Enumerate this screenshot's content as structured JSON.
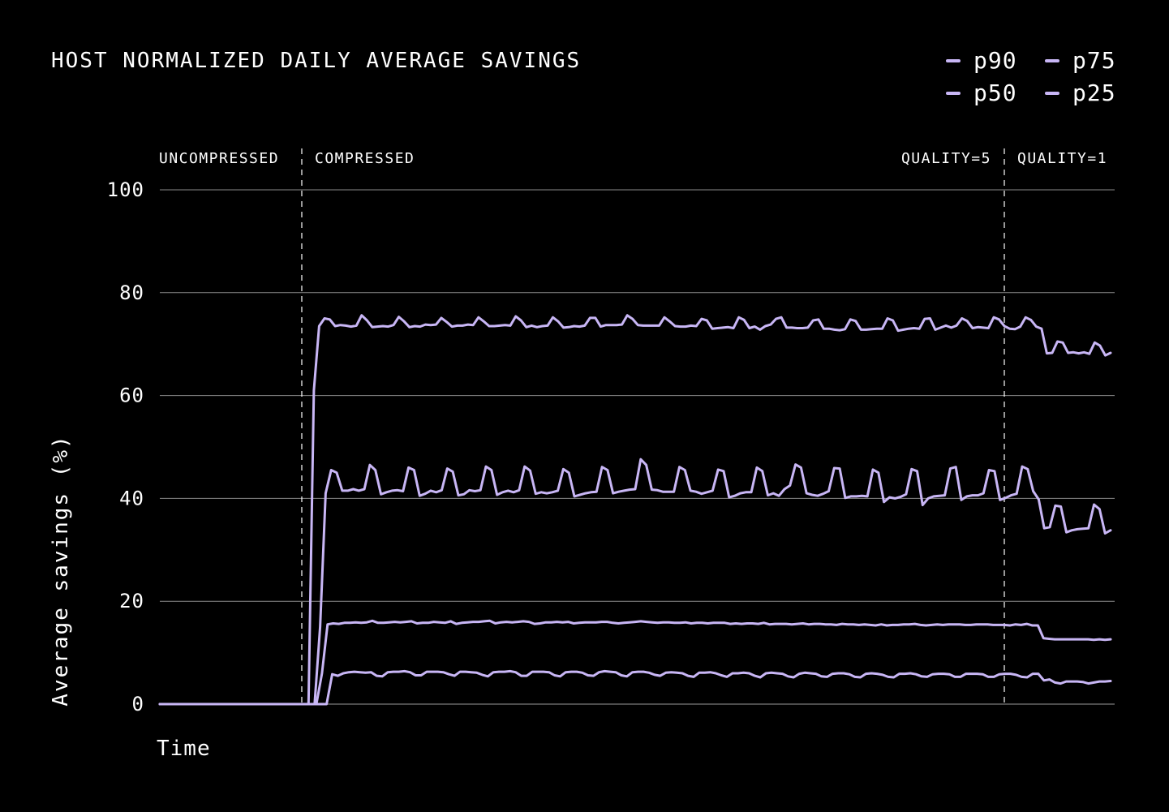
{
  "chart_data": {
    "type": "line",
    "title": "HOST NORMALIZED DAILY AVERAGE SAVINGS",
    "xlabel": "Time",
    "ylabel": "Average savings (%)",
    "ylim": [
      0,
      100
    ],
    "yticks": [
      0,
      20,
      40,
      60,
      80,
      100
    ],
    "grid": true,
    "legend_position": "top-right",
    "phases": [
      {
        "label": "UNCOMPRESSED"
      },
      {
        "label": "COMPRESSED"
      },
      {
        "label": "QUALITY=5"
      },
      {
        "label": "QUALITY=1"
      }
    ],
    "series": [
      {
        "name": "p90",
        "color": "#c8b6f5",
        "values": [
          0,
          0,
          0,
          0,
          0,
          0,
          0,
          0,
          0,
          0,
          0,
          0,
          0,
          0,
          0,
          0,
          0,
          0,
          0,
          0,
          0,
          0,
          0,
          0,
          0,
          0,
          0,
          0,
          0,
          61,
          73.5,
          75,
          74.8,
          73.5,
          73.7,
          73.6,
          73.4,
          73.6,
          75.6,
          74.6,
          73.3,
          73.4,
          73.5,
          73.4,
          73.7,
          75.3,
          74.4,
          73.3,
          73.5,
          73.4,
          73.8,
          73.7,
          73.8,
          75.1,
          74.3,
          73.4,
          73.6,
          73.6,
          73.8,
          73.7,
          75.2,
          74.4,
          73.5,
          73.5,
          73.6,
          73.7,
          73.6,
          75.4,
          74.6,
          73.3,
          73.6,
          73.3,
          73.5,
          73.6,
          75.2,
          74.4,
          73.2,
          73.3,
          73.5,
          73.4,
          73.6,
          75.1,
          75.1,
          73.4,
          73.7,
          73.7,
          73.7,
          73.8,
          75.6,
          74.9,
          73.7,
          73.6,
          73.6,
          73.6,
          73.6,
          75.2,
          74.4,
          73.5,
          73.4,
          73.4,
          73.6,
          73.5,
          74.9,
          74.6,
          73,
          73.1,
          73.2,
          73.3,
          73.1,
          75.2,
          74.7,
          73.1,
          73.4,
          72.8,
          73.5,
          73.8,
          74.9,
          75.2,
          73.2,
          73.2,
          73.1,
          73.1,
          73.2,
          74.6,
          74.8,
          73,
          73,
          72.8,
          72.7,
          72.9,
          74.8,
          74.5,
          72.8,
          72.8,
          72.9,
          73,
          73,
          75,
          74.6,
          72.6,
          72.8,
          73,
          73.1,
          73,
          74.9,
          75,
          72.8,
          73.2,
          73.6,
          73.2,
          73.6,
          75,
          74.5,
          73.1,
          73.3,
          73.2,
          73.1,
          75.2,
          74.8,
          73.5,
          73,
          72.9,
          73.4,
          75.2,
          74.7,
          73.4,
          73,
          68.2,
          68.3,
          70.5,
          70.3,
          68.3,
          68.4,
          68.2,
          68.4,
          68.1,
          70.3,
          69.7,
          67.8,
          68.3
        ]
      },
      {
        "name": "p75",
        "color": "#c8b6f5",
        "values": [
          0,
          0,
          0,
          0,
          0,
          0,
          0,
          0,
          0,
          0,
          0,
          0,
          0,
          0,
          0,
          0,
          0,
          0,
          0,
          0,
          0,
          0,
          0,
          0,
          0,
          0,
          0,
          0,
          0,
          15,
          41,
          45.5,
          45,
          41.5,
          41.5,
          41.8,
          41.5,
          41.8,
          46.5,
          45.5,
          40.8,
          41.2,
          41.5,
          41.6,
          41.4,
          46,
          45.5,
          40.5,
          40.9,
          41.5,
          41.2,
          41.6,
          45.8,
          45.2,
          40.6,
          40.8,
          41.6,
          41.4,
          41.6,
          46.2,
          45.5,
          40.7,
          41.2,
          41.5,
          41.2,
          41.6,
          46.2,
          45.4,
          40.9,
          41.2,
          41,
          41.2,
          41.5,
          45.7,
          45,
          40.4,
          40.7,
          41,
          41.2,
          41.3,
          46.1,
          45.5,
          41,
          41.3,
          41.5,
          41.7,
          41.8,
          47.6,
          46.5,
          41.7,
          41.6,
          41.3,
          41.3,
          41.3,
          46.1,
          45.5,
          41.5,
          41.3,
          40.9,
          41.2,
          41.5,
          45.6,
          45.3,
          40.2,
          40.5,
          41,
          41.2,
          41.2,
          46,
          45.3,
          40.6,
          41,
          40.5,
          41.8,
          42.5,
          46.6,
          46,
          41,
          40.7,
          40.5,
          40.9,
          41.4,
          45.9,
          45.8,
          40.1,
          40.4,
          40.4,
          40.5,
          40.4,
          45.6,
          45,
          39.3,
          40.2,
          40,
          40.3,
          40.8,
          45.7,
          45.3,
          38.7,
          40,
          40.4,
          40.5,
          40.6,
          45.8,
          46.1,
          39.7,
          40.4,
          40.6,
          40.6,
          41,
          45.5,
          45.3,
          39.7,
          40.1,
          40.6,
          40.9,
          46.2,
          45.7,
          41.4,
          39.8,
          34.2,
          34.4,
          38.6,
          38.4,
          33.4,
          33.8,
          34,
          34.1,
          34.2,
          38.8,
          37.9,
          33.2,
          33.8
        ]
      },
      {
        "name": "p50",
        "color": "#c8b6f5",
        "values": [
          0,
          0,
          0,
          0,
          0,
          0,
          0,
          0,
          0,
          0,
          0,
          0,
          0,
          0,
          0,
          0,
          0,
          0,
          0,
          0,
          0,
          0,
          0,
          0,
          0,
          0,
          0,
          0,
          0,
          6,
          15.5,
          15.7,
          15.6,
          15.8,
          15.8,
          15.9,
          15.8,
          15.9,
          16.2,
          15.8,
          15.8,
          15.9,
          16,
          15.9,
          16,
          16.1,
          15.7,
          15.8,
          15.8,
          16,
          15.9,
          15.8,
          16.1,
          15.6,
          15.8,
          15.9,
          16,
          16,
          16.1,
          16.2,
          15.7,
          15.9,
          16,
          15.9,
          16,
          16.1,
          16,
          15.6,
          15.7,
          15.9,
          15.9,
          16,
          15.9,
          16,
          15.7,
          15.8,
          15.9,
          15.9,
          15.9,
          16,
          16,
          15.8,
          15.7,
          15.8,
          15.9,
          16,
          16.1,
          16,
          15.9,
          15.8,
          15.9,
          15.9,
          15.8,
          15.8,
          15.9,
          15.7,
          15.8,
          15.8,
          15.7,
          15.8,
          15.8,
          15.8,
          15.6,
          15.7,
          15.6,
          15.7,
          15.7,
          15.6,
          15.8,
          15.5,
          15.6,
          15.6,
          15.6,
          15.5,
          15.6,
          15.7,
          15.5,
          15.6,
          15.6,
          15.5,
          15.5,
          15.4,
          15.6,
          15.5,
          15.5,
          15.4,
          15.5,
          15.4,
          15.3,
          15.5,
          15.3,
          15.4,
          15.4,
          15.5,
          15.5,
          15.6,
          15.4,
          15.3,
          15.4,
          15.5,
          15.4,
          15.5,
          15.5,
          15.5,
          15.4,
          15.4,
          15.5,
          15.5,
          15.5,
          15.4,
          15.4,
          15.4,
          15.3,
          15.5,
          15.4,
          15.6,
          15.3,
          15.3,
          12.8,
          12.7,
          12.6,
          12.6,
          12.6,
          12.6,
          12.6,
          12.6,
          12.6,
          12.5,
          12.6,
          12.5,
          12.6
        ]
      },
      {
        "name": "p25",
        "color": "#c8b6f5",
        "values": [
          0,
          0,
          0,
          0,
          0,
          0,
          0,
          0,
          0,
          0,
          0,
          0,
          0,
          0,
          0,
          0,
          0,
          0,
          0,
          0,
          0,
          0,
          0,
          0,
          0,
          0,
          0,
          0,
          0,
          0,
          0,
          5.8,
          5.5,
          6,
          6.2,
          6.3,
          6.2,
          6.1,
          6.2,
          5.5,
          5.4,
          6.2,
          6.3,
          6.3,
          6.4,
          6.2,
          5.6,
          5.6,
          6.3,
          6.3,
          6.3,
          6.2,
          5.8,
          5.5,
          6.3,
          6.3,
          6.2,
          6.1,
          5.7,
          5.4,
          6.2,
          6.3,
          6.3,
          6.4,
          6.2,
          5.5,
          5.5,
          6.3,
          6.3,
          6.3,
          6.2,
          5.6,
          5.4,
          6.2,
          6.3,
          6.3,
          6.1,
          5.6,
          5.5,
          6.2,
          6.4,
          6.3,
          6.2,
          5.6,
          5.4,
          6.2,
          6.3,
          6.3,
          6.1,
          5.7,
          5.5,
          6.1,
          6.2,
          6.1,
          6,
          5.5,
          5.3,
          6.1,
          6.1,
          6.2,
          6,
          5.6,
          5.3,
          6,
          6,
          6.1,
          6,
          5.5,
          5.2,
          6,
          6.1,
          6,
          5.9,
          5.4,
          5.2,
          5.9,
          6.1,
          6,
          5.9,
          5.4,
          5.3,
          5.9,
          6,
          6,
          5.8,
          5.3,
          5.2,
          5.9,
          6,
          5.9,
          5.7,
          5.3,
          5.2,
          5.9,
          5.9,
          6,
          5.8,
          5.4,
          5.3,
          5.8,
          5.9,
          5.9,
          5.8,
          5.3,
          5.3,
          5.9,
          5.9,
          5.9,
          5.8,
          5.3,
          5.3,
          5.8,
          5.9,
          5.9,
          5.7,
          5.3,
          5.2,
          5.9,
          5.9,
          4.6,
          4.8,
          4.2,
          4,
          4.4,
          4.4,
          4.4,
          4.3,
          4,
          4.2,
          4.4,
          4.4,
          4.5
        ]
      }
    ]
  }
}
